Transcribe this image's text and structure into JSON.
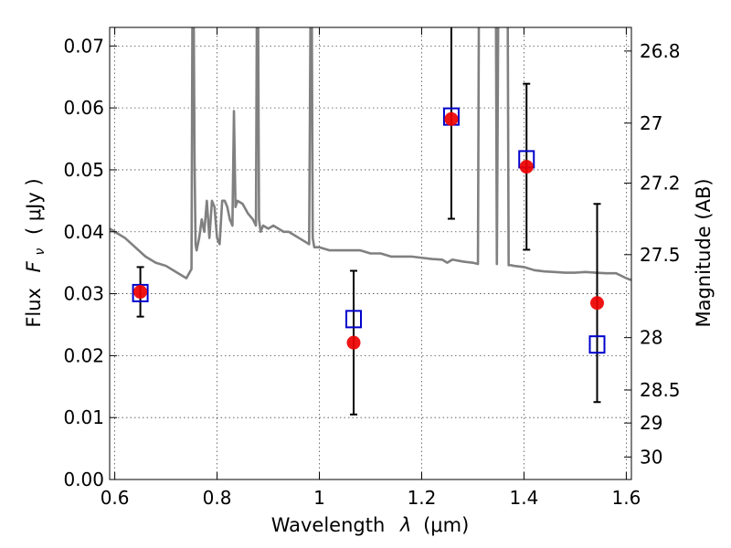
{
  "chart_data": {
    "type": "scatter",
    "xlabel_text": "Wavelength",
    "xlabel_symbol": "λ",
    "xlabel_unit": "(μm)",
    "ylabel_text": "Flux",
    "ylabel_symbol": "F",
    "ylabel_sub": "ν",
    "ylabel_unit": "( μJy )",
    "y2label": "Magnitude (AB)",
    "xlim": [
      0.59,
      1.61
    ],
    "ylim": [
      0.0,
      0.073
    ],
    "grid": true,
    "x_ticks": [
      {
        "value": 0.6,
        "label": "0.6"
      },
      {
        "value": 0.8,
        "label": "0.8"
      },
      {
        "value": 1.0,
        "label": "1"
      },
      {
        "value": 1.2,
        "label": "1.2"
      },
      {
        "value": 1.4,
        "label": "1.4"
      },
      {
        "value": 1.6,
        "label": "1.6"
      }
    ],
    "y_ticks": [
      {
        "value": 0.0,
        "label": "0.00"
      },
      {
        "value": 0.01,
        "label": "0.01"
      },
      {
        "value": 0.02,
        "label": "0.02"
      },
      {
        "value": 0.03,
        "label": "0.03"
      },
      {
        "value": 0.04,
        "label": "0.04"
      },
      {
        "value": 0.05,
        "label": "0.05"
      },
      {
        "value": 0.06,
        "label": "0.06"
      },
      {
        "value": 0.07,
        "label": "0.07"
      }
    ],
    "y2_ticks": [
      {
        "value": 26.8,
        "label": "26.8"
      },
      {
        "value": 27.0,
        "label": "27"
      },
      {
        "value": 27.2,
        "label": "27.2"
      },
      {
        "value": 27.5,
        "label": "27.5"
      },
      {
        "value": 28.0,
        "label": "28"
      },
      {
        "value": 28.5,
        "label": "28.5"
      },
      {
        "value": 29.0,
        "label": "29"
      },
      {
        "value": 30.0,
        "label": "30"
      }
    ],
    "series": [
      {
        "kind": "line",
        "color": "#808080",
        "x": [
          0.59,
          0.6,
          0.62,
          0.64,
          0.66,
          0.68,
          0.7,
          0.72,
          0.74,
          0.75,
          0.752,
          0.754,
          0.756,
          0.758,
          0.76,
          0.765,
          0.77,
          0.775,
          0.78,
          0.785,
          0.79,
          0.795,
          0.8,
          0.805,
          0.81,
          0.815,
          0.82,
          0.825,
          0.83,
          0.833,
          0.836,
          0.84,
          0.85,
          0.86,
          0.87,
          0.876,
          0.878,
          0.88,
          0.882,
          0.885,
          0.89,
          0.9,
          0.91,
          0.92,
          0.93,
          0.94,
          0.95,
          0.96,
          0.97,
          0.98,
          0.983,
          0.985,
          0.987,
          0.99,
          1.0,
          1.02,
          1.04,
          1.06,
          1.08,
          1.1,
          1.12,
          1.14,
          1.16,
          1.18,
          1.2,
          1.22,
          1.24,
          1.25,
          1.26,
          1.28,
          1.3,
          1.31,
          1.312,
          1.315,
          1.32,
          1.33,
          1.345,
          1.347,
          1.35,
          1.353,
          1.36,
          1.365,
          1.368,
          1.37,
          1.375,
          1.38,
          1.4,
          1.42,
          1.44,
          1.46,
          1.48,
          1.5,
          1.52,
          1.54,
          1.56,
          1.58,
          1.6,
          1.61
        ],
        "y": [
          0.0405,
          0.04,
          0.039,
          0.0375,
          0.036,
          0.035,
          0.0345,
          0.0335,
          0.0325,
          0.034,
          0.08,
          0.08,
          0.051,
          0.038,
          0.037,
          0.039,
          0.042,
          0.04,
          0.045,
          0.039,
          0.045,
          0.044,
          0.039,
          0.038,
          0.045,
          0.045,
          0.044,
          0.042,
          0.041,
          0.0595,
          0.044,
          0.045,
          0.0445,
          0.043,
          0.042,
          0.041,
          0.08,
          0.08,
          0.042,
          0.04,
          0.041,
          0.0405,
          0.041,
          0.0405,
          0.04,
          0.04,
          0.0395,
          0.039,
          0.0385,
          0.038,
          0.08,
          0.08,
          0.039,
          0.0375,
          0.0375,
          0.037,
          0.037,
          0.037,
          0.037,
          0.0365,
          0.0365,
          0.036,
          0.036,
          0.036,
          0.0358,
          0.0356,
          0.0355,
          0.035,
          0.0355,
          0.0352,
          0.035,
          0.0348,
          0.08,
          0.08,
          0.08,
          0.08,
          0.08,
          0.0348,
          0.08,
          0.08,
          0.08,
          0.08,
          0.08,
          0.0346,
          0.0346,
          0.0345,
          0.0343,
          0.0338,
          0.0336,
          0.0335,
          0.0334,
          0.0334,
          0.0335,
          0.0334,
          0.0333,
          0.0333,
          0.0325,
          0.0322
        ]
      },
      {
        "kind": "errorbar",
        "color": "#000000",
        "points": [
          {
            "x": 0.65,
            "y": 0.0303,
            "err": 0.004
          },
          {
            "x": 1.067,
            "y": 0.0221,
            "err": 0.0116
          },
          {
            "x": 1.258,
            "y": 0.0582,
            "err": 0.0161
          },
          {
            "x": 1.405,
            "y": 0.0505,
            "err": 0.0134
          },
          {
            "x": 1.543,
            "y": 0.0285,
            "err": 0.016
          }
        ]
      },
      {
        "kind": "markers",
        "marker": "square",
        "color": "#0000cc",
        "x": [
          0.65,
          1.067,
          1.258,
          1.405,
          1.543
        ],
        "y": [
          0.0301,
          0.0259,
          0.0586,
          0.0517,
          0.0218
        ]
      },
      {
        "kind": "markers",
        "marker": "circle",
        "color": "#ee0000",
        "x": [
          0.65,
          1.067,
          1.258,
          1.405,
          1.543
        ],
        "y": [
          0.0303,
          0.0221,
          0.0582,
          0.0505,
          0.0285
        ]
      }
    ]
  }
}
